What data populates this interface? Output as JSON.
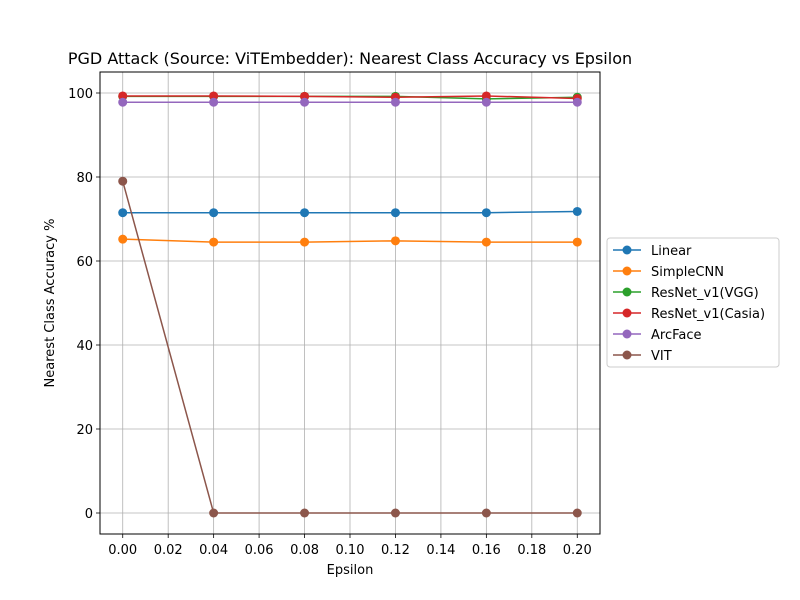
{
  "chart_data": {
    "type": "line",
    "title": "PGD Attack (Source: ViTEmbedder): Nearest Class Accuracy vs Epsilon",
    "xlabel": "Epsilon",
    "ylabel": "Nearest Class Accuracy %",
    "x": [
      0.0,
      0.04,
      0.08,
      0.12,
      0.16,
      0.2
    ],
    "xlim": [
      -0.01,
      0.21
    ],
    "ylim": [
      -5,
      105
    ],
    "xticks": [
      0.0,
      0.02,
      0.04,
      0.06,
      0.08,
      0.1,
      0.12,
      0.14,
      0.16,
      0.18,
      0.2
    ],
    "xtick_labels": [
      "0.00",
      "0.02",
      "0.04",
      "0.06",
      "0.08",
      "0.10",
      "0.12",
      "0.14",
      "0.16",
      "0.18",
      "0.20"
    ],
    "yticks": [
      0,
      20,
      40,
      60,
      80,
      100
    ],
    "ytick_labels": [
      "0",
      "20",
      "40",
      "60",
      "80",
      "100"
    ],
    "grid": true,
    "legend_position": "outside-right",
    "series": [
      {
        "name": "Linear",
        "color": "#1f77b4",
        "values": [
          71.5,
          71.5,
          71.5,
          71.5,
          71.5,
          71.8
        ]
      },
      {
        "name": "SimpleCNN",
        "color": "#ff7f0e",
        "values": [
          65.2,
          64.5,
          64.5,
          64.8,
          64.5,
          64.5
        ]
      },
      {
        "name": "ResNet_v1(VGG)",
        "color": "#2ca02c",
        "values": [
          99.2,
          99.2,
          99.2,
          99.2,
          98.6,
          99.0
        ]
      },
      {
        "name": "ResNet_v1(Casia)",
        "color": "#d62728",
        "values": [
          99.3,
          99.3,
          99.2,
          99.0,
          99.3,
          98.7
        ]
      },
      {
        "name": "ArcFace",
        "color": "#9467bd",
        "values": [
          97.8,
          97.8,
          97.8,
          97.8,
          97.8,
          97.8
        ]
      },
      {
        "name": "VIT",
        "color": "#8c564b",
        "values": [
          79.0,
          0.0,
          0.0,
          0.0,
          0.0,
          0.0
        ]
      }
    ]
  }
}
